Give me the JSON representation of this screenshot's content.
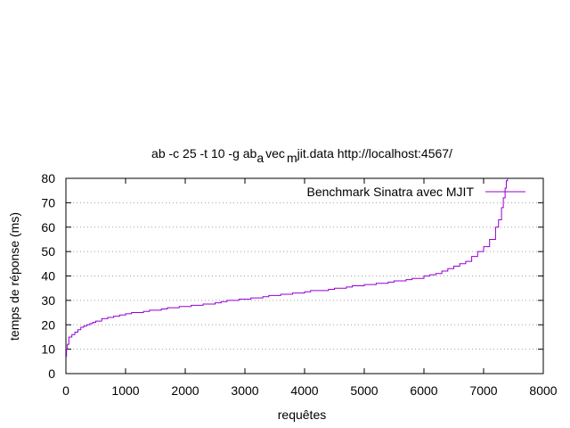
{
  "chart_data": {
    "type": "line",
    "title": {
      "main": "ab -c 25 -t 10 -g ab",
      "sub1": "a",
      "mid": "vec",
      "sub2": "m",
      "end": "jit.data http://localhost:4567/"
    },
    "xlabel": "requêtes",
    "ylabel": "temps de réponse (ms)",
    "xlim": [
      0,
      8000
    ],
    "ylim": [
      0,
      80
    ],
    "xticks": [
      0,
      1000,
      2000,
      3000,
      4000,
      5000,
      6000,
      7000,
      8000
    ],
    "yticks": [
      0,
      10,
      20,
      30,
      40,
      50,
      60,
      70,
      80
    ],
    "grid": "horizontal dotted",
    "legend_position": "top-right",
    "colors": {
      "series": "#9400d3",
      "grid": "#a0a0a0",
      "axes": "#000000"
    },
    "series": [
      {
        "name": "Benchmark Sinatra avec MJIT",
        "step": true,
        "x": [
          0,
          10,
          25,
          50,
          100,
          150,
          200,
          250,
          300,
          350,
          400,
          450,
          500,
          600,
          700,
          800,
          900,
          1000,
          1100,
          1200,
          1300,
          1400,
          1500,
          1600,
          1700,
          1800,
          1900,
          2000,
          2100,
          2200,
          2300,
          2400,
          2500,
          2600,
          2700,
          2800,
          2900,
          3000,
          3100,
          3200,
          3300,
          3400,
          3500,
          3600,
          3700,
          3800,
          3900,
          4000,
          4100,
          4200,
          4300,
          4400,
          4500,
          4600,
          4700,
          4800,
          4900,
          5000,
          5100,
          5200,
          5300,
          5400,
          5500,
          5600,
          5700,
          5800,
          5900,
          6000,
          6100,
          6200,
          6300,
          6400,
          6500,
          6600,
          6700,
          6800,
          6900,
          7000,
          7100,
          7200,
          7250,
          7300,
          7330,
          7360,
          7380,
          7400
        ],
        "y": [
          7,
          10,
          12,
          15,
          16,
          17,
          18,
          19,
          19.5,
          20,
          20.5,
          21,
          21.5,
          22.5,
          23,
          23.5,
          24,
          24.5,
          25,
          25,
          25.5,
          26,
          26,
          26.5,
          27,
          27,
          27.5,
          27.5,
          28,
          28,
          28.5,
          28.5,
          29,
          29.5,
          30,
          30,
          30.5,
          30.5,
          31,
          31,
          31.5,
          32,
          32,
          32.5,
          32.5,
          33,
          33,
          33.5,
          34,
          34,
          34,
          34.5,
          35,
          35,
          35.5,
          36,
          36,
          36.5,
          36.5,
          37,
          37,
          37.5,
          38,
          38,
          38.5,
          39,
          39,
          40,
          40.5,
          41,
          42,
          43,
          44,
          45,
          46,
          48,
          50,
          52,
          55,
          60,
          63,
          68,
          72,
          76,
          79,
          82
        ]
      }
    ]
  }
}
